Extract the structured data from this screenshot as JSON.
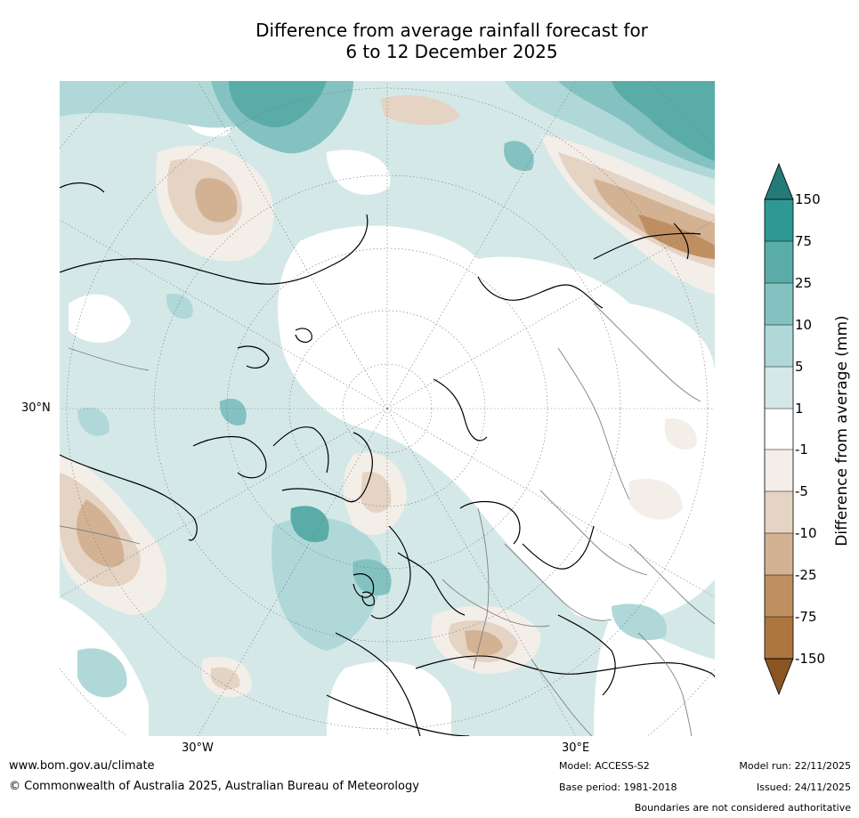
{
  "title": {
    "line1": "Difference from average rainfall forecast for",
    "line2": "6 to 12 December 2025"
  },
  "map": {
    "projection": "North polar stereographic",
    "lat_label": "30°N",
    "lon_labels": [
      "30°W",
      "30°E"
    ]
  },
  "colorbar": {
    "label": "Difference from average (mm)",
    "ticks": [
      "150",
      "75",
      "25",
      "10",
      "5",
      "1",
      "-1",
      "-5",
      "-10",
      "-25",
      "-75",
      "-150"
    ],
    "colors": {
      "over": "#237A78",
      "c150_75": "#2E9894",
      "c75_25": "#5AACA9",
      "c25_10": "#83C2C0",
      "c10_5": "#B0D8D8",
      "c5_1": "#D5E8E8",
      "c1_m1": "#FFFFFF",
      "cm1_m5": "#F3EEE8",
      "cm5_m10": "#E5D3C3",
      "cm10_m25": "#D3B293",
      "cm25_m75": "#BF8F62",
      "cm75_m150": "#AC763E",
      "under": "#8B5523"
    }
  },
  "footer": {
    "url": "www.bom.gov.au/climate",
    "copyright": "© Commonwealth of Australia 2025, Australian Bureau of Meteorology",
    "model": "Model: ACCESS-S2",
    "base_period": "Base period: 1981-2018",
    "model_run": "Model run: 22/11/2025",
    "issued": "Issued: 24/11/2025",
    "disclaimer": "Boundaries are not considered authoritative"
  }
}
